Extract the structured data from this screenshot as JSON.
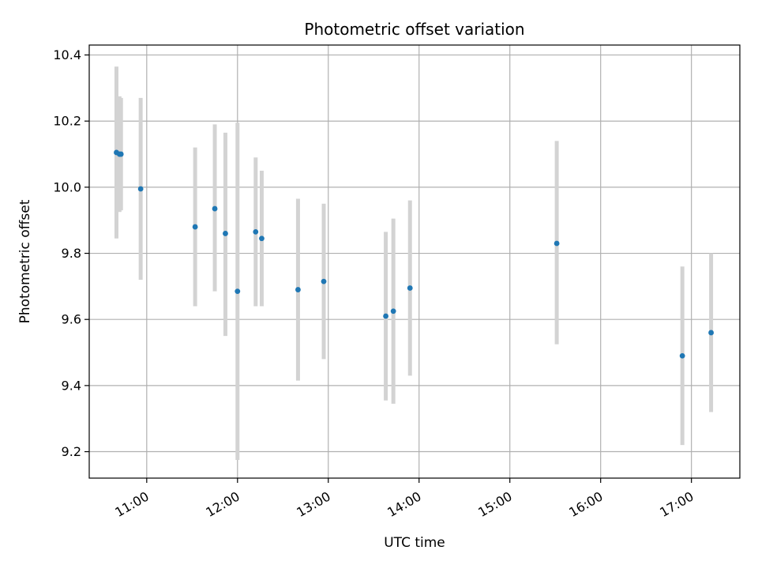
{
  "chart_data": {
    "type": "scatter",
    "title": "Photometric offset variation",
    "xlabel": "UTC time",
    "ylabel": "Photometric offset",
    "x_axis_kind": "time",
    "xlim": [
      "10:22",
      "17:32"
    ],
    "ylim": [
      9.12,
      10.43
    ],
    "grid": true,
    "legend": "none",
    "x_ticks": [
      "11:00",
      "12:00",
      "13:00",
      "14:00",
      "15:00",
      "16:00",
      "17:00"
    ],
    "y_ticks": [
      "9.2",
      "9.4",
      "9.6",
      "9.8",
      "10.0",
      "10.2",
      "10.4"
    ],
    "colors": {
      "point": "#1f77b4",
      "errorbar": "#d3d3d3",
      "grid": "#b0b0b0"
    },
    "points": [
      {
        "x": "10:40",
        "y": 10.105,
        "err_low": 9.845,
        "err_high": 10.365
      },
      {
        "x": "10:42",
        "y": 10.1,
        "err_low": 9.925,
        "err_high": 10.275
      },
      {
        "x": "10:43",
        "y": 10.1,
        "err_low": 9.93,
        "err_high": 10.27
      },
      {
        "x": "10:56",
        "y": 9.995,
        "err_low": 9.72,
        "err_high": 10.27
      },
      {
        "x": "11:32",
        "y": 9.88,
        "err_low": 9.64,
        "err_high": 10.12
      },
      {
        "x": "11:45",
        "y": 9.935,
        "err_low": 9.685,
        "err_high": 10.19
      },
      {
        "x": "11:52",
        "y": 9.86,
        "err_low": 9.55,
        "err_high": 10.165
      },
      {
        "x": "12:00",
        "y": 9.685,
        "err_low": 9.175,
        "err_high": 10.195
      },
      {
        "x": "12:12",
        "y": 9.865,
        "err_low": 9.64,
        "err_high": 10.09
      },
      {
        "x": "12:16",
        "y": 9.845,
        "err_low": 9.64,
        "err_high": 10.05
      },
      {
        "x": "12:40",
        "y": 9.69,
        "err_low": 9.415,
        "err_high": 9.965
      },
      {
        "x": "12:57",
        "y": 9.715,
        "err_low": 9.48,
        "err_high": 9.95
      },
      {
        "x": "13:38",
        "y": 9.61,
        "err_low": 9.355,
        "err_high": 9.865
      },
      {
        "x": "13:43",
        "y": 9.625,
        "err_low": 9.345,
        "err_high": 9.905
      },
      {
        "x": "13:54",
        "y": 9.695,
        "err_low": 9.43,
        "err_high": 9.96
      },
      {
        "x": "15:31",
        "y": 9.83,
        "err_low": 9.525,
        "err_high": 10.14
      },
      {
        "x": "16:54",
        "y": 9.49,
        "err_low": 9.22,
        "err_high": 9.76
      },
      {
        "x": "17:13",
        "y": 9.56,
        "err_low": 9.32,
        "err_high": 9.8
      }
    ]
  }
}
